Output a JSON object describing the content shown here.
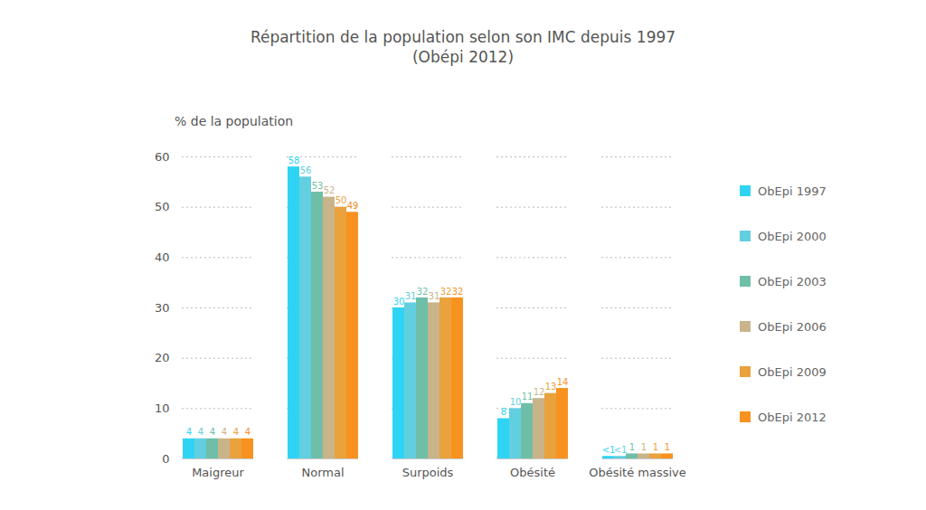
{
  "chart_data": {
    "type": "bar",
    "title": "Répartition de la population selon son IMC depuis 1997",
    "subtitle": "(Obépi 2012)",
    "y_label": "% de la population",
    "categories": [
      "Maigreur",
      "Normal",
      "Surpoids",
      "Obésité",
      "Obésité massive"
    ],
    "series": [
      {
        "name": "ObEpi 1997",
        "color": "#2fd4f4",
        "values": [
          4,
          58,
          30,
          8,
          0.5
        ],
        "value_labels": [
          "4",
          "58",
          "30",
          "8",
          "<1"
        ]
      },
      {
        "name": "ObEpi 2000",
        "color": "#62cfe0",
        "values": [
          4,
          56,
          31,
          10,
          0.5
        ],
        "value_labels": [
          "4",
          "56",
          "31",
          "10",
          "<1"
        ]
      },
      {
        "name": "ObEpi 2003",
        "color": "#6fbfa8",
        "values": [
          4,
          53,
          32,
          11,
          1
        ]
      },
      {
        "name": "ObEpi 2006",
        "color": "#c9b48a",
        "values": [
          4,
          52,
          31,
          12,
          1
        ]
      },
      {
        "name": "ObEpi 2009",
        "color": "#e9a23c",
        "values": [
          4,
          50,
          32,
          13,
          1
        ]
      },
      {
        "name": "ObEpi 2012",
        "color": "#f8921f",
        "values": [
          4,
          49,
          32,
          14,
          1
        ]
      }
    ],
    "ylim": [
      0,
      60
    ],
    "yticks": [
      0,
      10,
      20,
      30,
      40,
      50,
      60
    ],
    "grid": true,
    "legend": "right",
    "data_labels": true
  }
}
